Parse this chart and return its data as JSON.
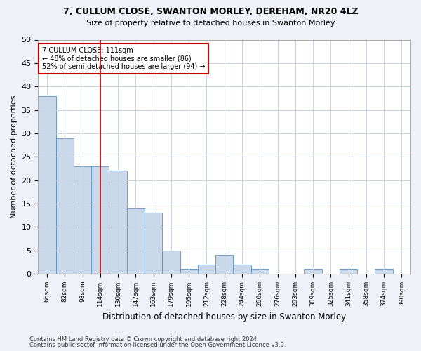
{
  "title1": "7, CULLUM CLOSE, SWANTON MORLEY, DEREHAM, NR20 4LZ",
  "title2": "Size of property relative to detached houses in Swanton Morley",
  "xlabel": "Distribution of detached houses by size in Swanton Morley",
  "ylabel": "Number of detached properties",
  "categories": [
    "66sqm",
    "82sqm",
    "98sqm",
    "114sqm",
    "130sqm",
    "147sqm",
    "163sqm",
    "179sqm",
    "195sqm",
    "212sqm",
    "228sqm",
    "244sqm",
    "260sqm",
    "276sqm",
    "293sqm",
    "309sqm",
    "325sqm",
    "341sqm",
    "358sqm",
    "374sqm",
    "390sqm"
  ],
  "values": [
    38,
    29,
    23,
    23,
    22,
    14,
    13,
    5,
    1,
    2,
    4,
    2,
    1,
    0,
    0,
    1,
    0,
    1,
    0,
    1,
    0
  ],
  "bar_color": "#c9d9ea",
  "bar_edge_color": "#5a8fc0",
  "bar_width": 1.0,
  "vline_x_index": 3,
  "vline_color": "#cc0000",
  "annotation_text": "7 CULLUM CLOSE: 111sqm\n← 48% of detached houses are smaller (86)\n52% of semi-detached houses are larger (94) →",
  "annotation_box_color": "#ffffff",
  "annotation_box_edge": "#cc0000",
  "ylim": [
    0,
    50
  ],
  "yticks": [
    0,
    5,
    10,
    15,
    20,
    25,
    30,
    35,
    40,
    45,
    50
  ],
  "footnote1": "Contains HM Land Registry data © Crown copyright and database right 2024.",
  "footnote2": "Contains public sector information licensed under the Open Government Licence v3.0.",
  "bg_color": "#eef2f8",
  "plot_bg_color": "#ffffff",
  "grid_color": "#c8d4e3"
}
